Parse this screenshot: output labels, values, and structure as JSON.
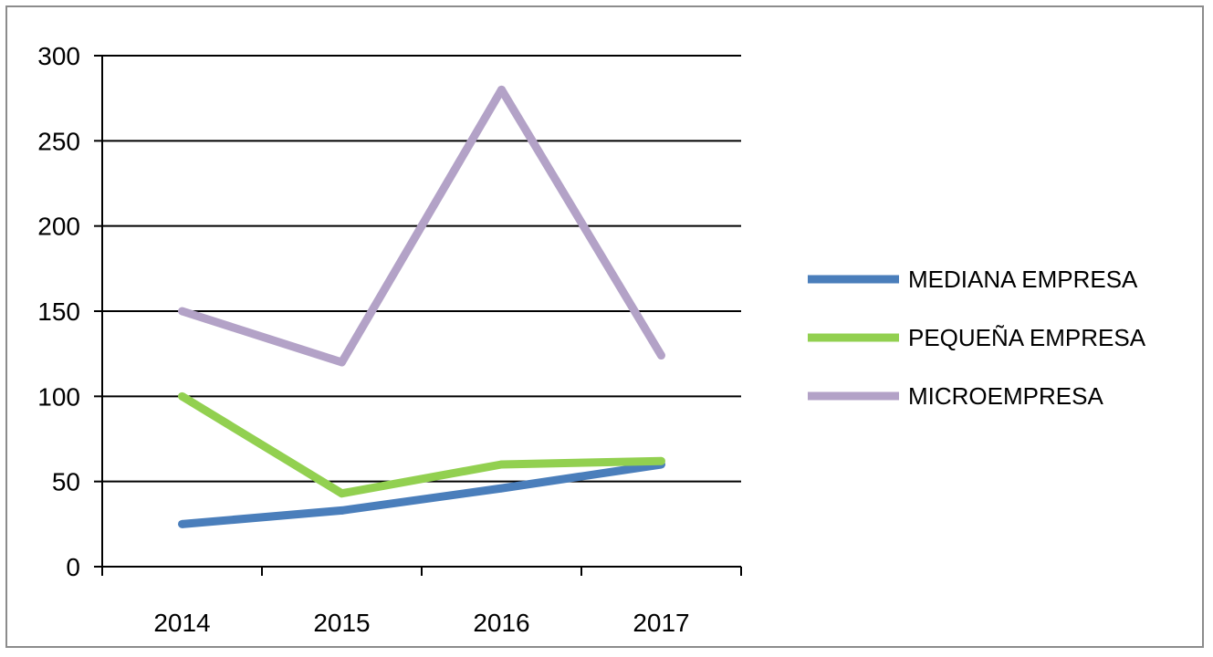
{
  "chart_data": {
    "type": "line",
    "title": "",
    "xlabel": "",
    "ylabel": "",
    "categories": [
      "2014",
      "2015",
      "2016",
      "2017"
    ],
    "ylim": [
      0,
      300
    ],
    "yticks": [
      0,
      50,
      100,
      150,
      200,
      250,
      300
    ],
    "grid": true,
    "legend_position": "right",
    "series": [
      {
        "name": "MEDIANA EMPRESA",
        "values": [
          25,
          33,
          46,
          60
        ],
        "color": "#4a7ebb"
      },
      {
        "name": "PEQUEÑA EMPRESA",
        "values": [
          100,
          43,
          60,
          62
        ],
        "color": "#92d050"
      },
      {
        "name": "MICROEMPRESA",
        "values": [
          150,
          120,
          280,
          124
        ],
        "color": "#b3a2c7"
      }
    ]
  }
}
